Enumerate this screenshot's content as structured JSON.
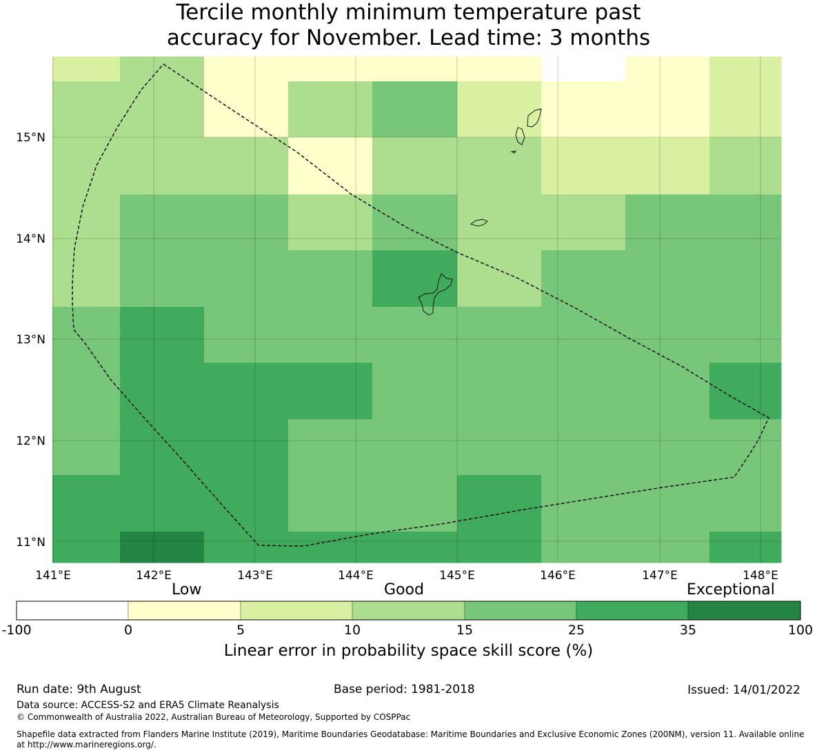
{
  "title": {
    "line1": "Tercile monthly minimum temperature past",
    "line2": "accuracy for November. Lead time: 3 months"
  },
  "axes": {
    "lon_labels": [
      "141°E",
      "142°E",
      "143°E",
      "144°E",
      "145°E",
      "146°E",
      "147°E",
      "148°E"
    ],
    "lat_labels": [
      "15°N",
      "14°N",
      "13°N",
      "12°N",
      "11°N"
    ]
  },
  "legend": {
    "category_labels": [
      "Low",
      "Good",
      "Exceptional"
    ],
    "tick_labels": [
      "-100",
      "0",
      "5",
      "10",
      "15",
      "25",
      "35",
      "100"
    ],
    "colors": [
      "#ffffff",
      "#ffffcc",
      "#d9f0a3",
      "#addd8e",
      "#78c679",
      "#41ab5d",
      "#238443"
    ],
    "label": "Linear error in probability space skill score (%)"
  },
  "footer": {
    "run_date": "Run date: 9th August",
    "base_period": "Base period: 1981-2018",
    "issued": "Issued: 14/01/2022",
    "data_source": "Data source: ACCESS-S2 and ERA5 Climate Reanalysis",
    "copyright": "© Commonwealth of Australia 2022, Australian Bureau of Meteorology, Supported by COSPPac",
    "shapefile_line1": "Shapefile data extracted from Flanders Marine Institute (2019), Maritime Boundaries Geodatabase: Maritime Boundaries and Exclusive Economic Zones (200NM), version 11. Available online",
    "shapefile_line2": "at http://www.marineregions.org/."
  },
  "map_grid": {
    "level_colors": [
      "#ffffff",
      "#ffffcc",
      "#d9f0a3",
      "#addd8e",
      "#78c679",
      "#41ab5d",
      "#238443"
    ],
    "rows": [
      [
        2,
        3,
        1,
        1,
        1,
        1,
        0,
        1,
        2
      ],
      [
        3,
        3,
        1,
        3,
        4,
        2,
        1,
        1,
        2
      ],
      [
        3,
        3,
        3,
        1,
        3,
        3,
        2,
        2,
        3
      ],
      [
        3,
        4,
        4,
        3,
        4,
        3,
        3,
        4,
        4
      ],
      [
        3,
        4,
        4,
        4,
        5,
        3,
        4,
        4,
        4
      ],
      [
        4,
        5,
        4,
        4,
        4,
        4,
        4,
        4,
        4
      ],
      [
        4,
        5,
        5,
        5,
        4,
        4,
        4,
        4,
        5
      ],
      [
        4,
        5,
        5,
        4,
        4,
        4,
        4,
        4,
        4
      ],
      [
        5,
        5,
        5,
        4,
        4,
        5,
        4,
        4,
        4
      ],
      [
        5,
        6,
        5,
        5,
        5,
        5,
        4,
        4,
        5
      ]
    ]
  }
}
